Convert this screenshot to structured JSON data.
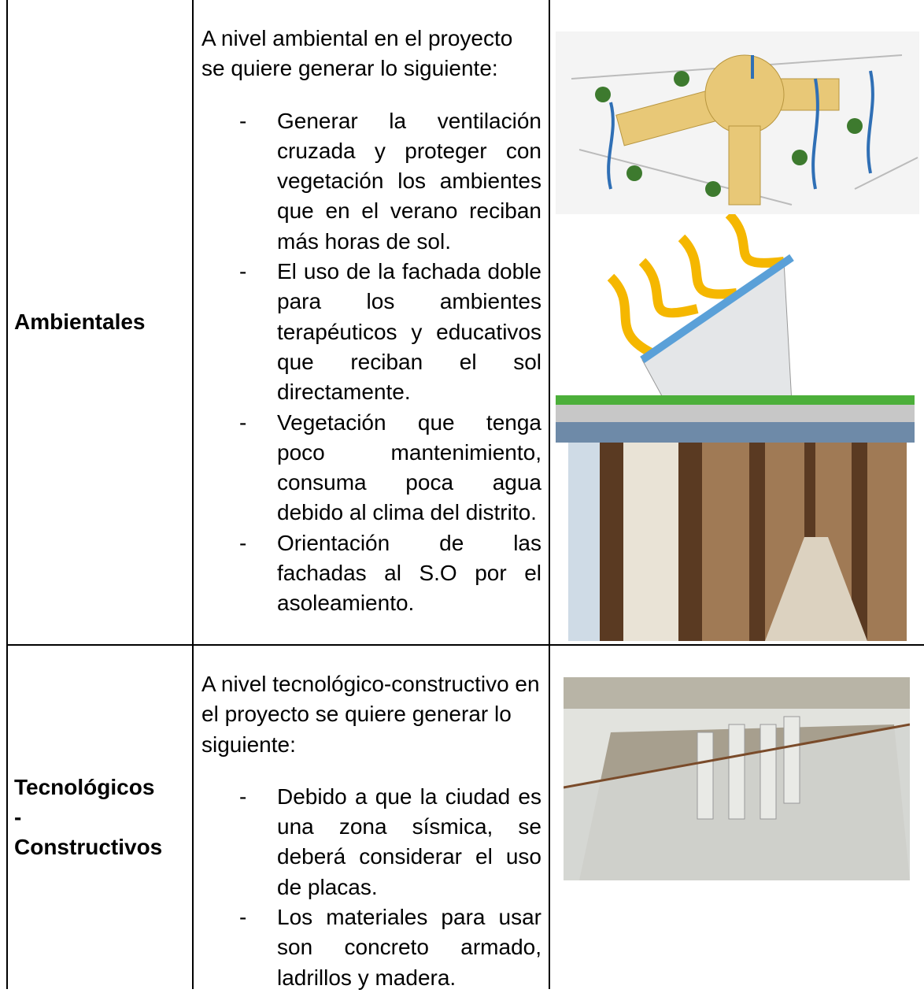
{
  "table": {
    "rows": [
      {
        "label": [
          "Ambientales"
        ],
        "intro": "A nivel ambiental en el proyecto se quiere generar lo siguiente:",
        "bullets": [
          "Generar la ventilación cruzada y proteger con vegetación los ambientes que en el verano reciban más horas de sol.",
          "El uso de la fachada doble para los ambientes terapéuticos y educativos que reciban el sol directamente.",
          "Vegetación que tenga poco mantenimiento, consuma poca agua debido al clima del distrito.",
          "Orientación de las fachadas al S.O por el asoleamiento."
        ]
      },
      {
        "label": [
          "Tecnológicos",
          "-",
          "Constructivos"
        ],
        "intro": "A nivel tecnológico-constructivo en el proyecto se quiere generar lo siguiente:",
        "bullets": [
          "Debido a que la ciudad es una zona sísmica, se deberá considerar el uso de placas.",
          "Los materiales para usar son concreto armado, ladrillos y madera."
        ]
      }
    ]
  }
}
